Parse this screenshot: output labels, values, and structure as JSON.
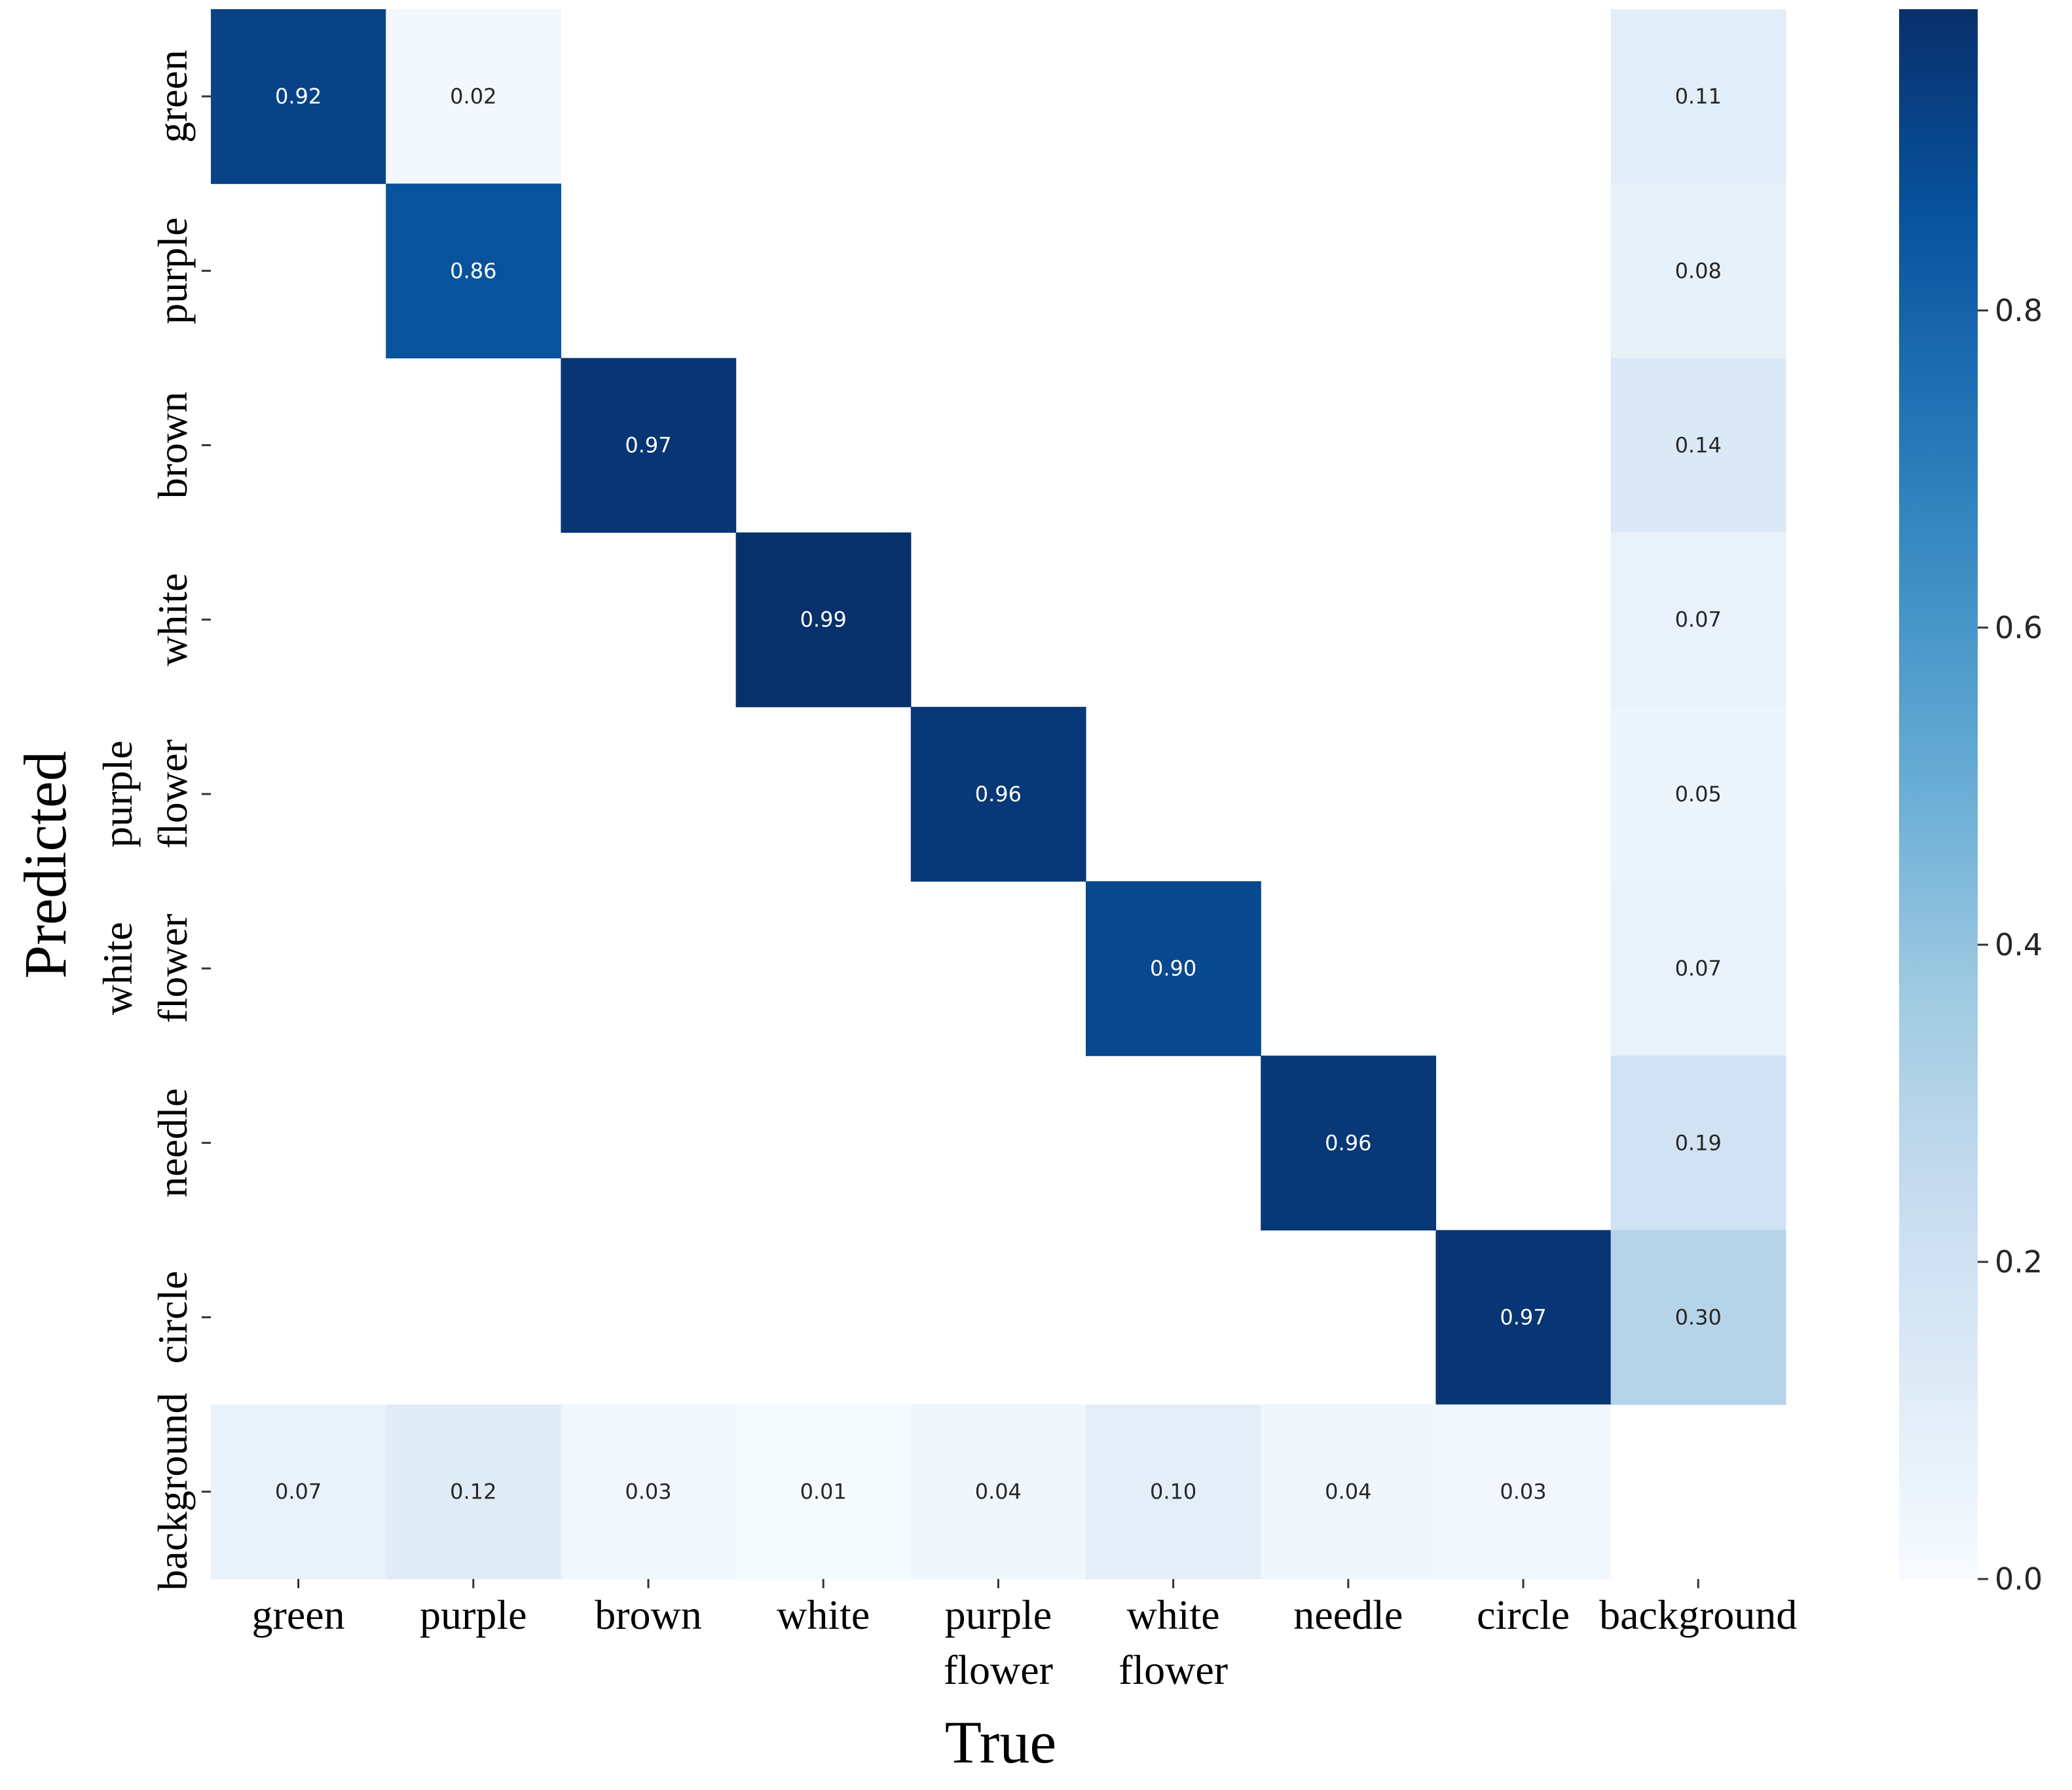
{
  "chart_data": {
    "type": "heatmap",
    "title": "",
    "xlabel": "True",
    "ylabel": "Predicted",
    "x_categories": [
      [
        "green"
      ],
      [
        "purple"
      ],
      [
        "brown"
      ],
      [
        "white"
      ],
      [
        "purple",
        "flower"
      ],
      [
        "white",
        "flower"
      ],
      [
        "needle"
      ],
      [
        "circle"
      ],
      [
        "background"
      ]
    ],
    "y_categories": [
      [
        "green"
      ],
      [
        "purple"
      ],
      [
        "brown"
      ],
      [
        "white"
      ],
      [
        "purple",
        "flower"
      ],
      [
        "white",
        "flower"
      ],
      [
        "needle"
      ],
      [
        "circle"
      ],
      [
        "background"
      ]
    ],
    "values": [
      [
        0.92,
        0.02,
        null,
        null,
        null,
        null,
        null,
        null,
        0.11
      ],
      [
        null,
        0.86,
        null,
        null,
        null,
        null,
        null,
        null,
        0.08
      ],
      [
        null,
        null,
        0.97,
        null,
        null,
        null,
        null,
        null,
        0.14
      ],
      [
        null,
        null,
        null,
        0.99,
        null,
        null,
        null,
        null,
        0.07
      ],
      [
        null,
        null,
        null,
        null,
        0.96,
        null,
        null,
        null,
        0.05
      ],
      [
        null,
        null,
        null,
        null,
        null,
        0.9,
        null,
        null,
        0.07
      ],
      [
        null,
        null,
        null,
        null,
        null,
        null,
        0.96,
        null,
        0.19
      ],
      [
        null,
        null,
        null,
        null,
        null,
        null,
        null,
        0.97,
        0.3
      ],
      [
        0.07,
        0.12,
        0.03,
        0.01,
        0.04,
        0.1,
        0.04,
        0.03,
        null
      ]
    ],
    "value_labels": [
      [
        "0.92",
        "0.02",
        "",
        "",
        "",
        "",
        "",
        "",
        "0.11"
      ],
      [
        "",
        "0.86",
        "",
        "",
        "",
        "",
        "",
        "",
        "0.08"
      ],
      [
        "",
        "",
        "0.97",
        "",
        "",
        "",
        "",
        "",
        "0.14"
      ],
      [
        "",
        "",
        "",
        "0.99",
        "",
        "",
        "",
        "",
        "0.07"
      ],
      [
        "",
        "",
        "",
        "",
        "0.96",
        "",
        "",
        "",
        "0.05"
      ],
      [
        "",
        "",
        "",
        "",
        "",
        "0.90",
        "",
        "",
        "0.07"
      ],
      [
        "",
        "",
        "",
        "",
        "",
        "",
        "0.96",
        "",
        "0.19"
      ],
      [
        "",
        "",
        "",
        "",
        "",
        "",
        "",
        "0.97",
        "0.30"
      ],
      [
        "0.07",
        "0.12",
        "0.03",
        "0.01",
        "0.04",
        "0.10",
        "0.04",
        "0.03",
        ""
      ]
    ],
    "colormap": "Blues",
    "colormap_stops": [
      "#f7fbff",
      "#deebf7",
      "#c6dbef",
      "#9ecae1",
      "#6baed6",
      "#4292c6",
      "#2171b5",
      "#08519c",
      "#08306b"
    ],
    "colorbar": {
      "range": [
        0,
        0.99
      ],
      "ticks": [
        0.0,
        0.2,
        0.4,
        0.6,
        0.8
      ],
      "tick_labels": [
        "0.0",
        "0.2",
        "0.4",
        "0.6",
        "0.8"
      ]
    }
  }
}
